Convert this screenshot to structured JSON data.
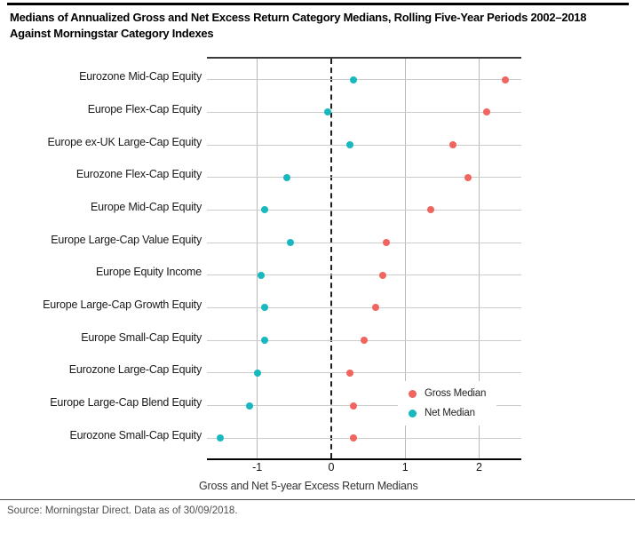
{
  "header": {
    "title_line1": "Medians of Annualized Gross and Net Excess Return Category Medians, Rolling Five-Year Periods 2002–2018",
    "title_line2": "Against Morningstar Category Indexes"
  },
  "legend": {
    "items": [
      {
        "label": "Gross Median",
        "color": "#F0655F"
      },
      {
        "label": "Net Median",
        "color": "#17B8BE"
      }
    ]
  },
  "footer": {
    "source": "Source: Morningstar Direct. Data as of 30/09/2018."
  },
  "chart_data": {
    "type": "scatter",
    "subtype": "horizontal-dot-plot",
    "title": "Medians of Annualized Gross and Net Excess Return Category Medians, Rolling Five-Year Periods 2002–2018 Against Morningstar Category Indexes",
    "categories": [
      "Eurozone Mid-Cap Equity",
      "Europe Flex-Cap Equity",
      "Europe ex-UK Large-Cap Equity",
      "Eurozone Flex-Cap Equity",
      "Europe Mid-Cap Equity",
      "Europe Large-Cap Value Equity",
      "Europe Equity Income",
      "Europe Large-Cap Growth Equity",
      "Europe Small-Cap Equity",
      "Eurozone Large-Cap Equity",
      "Europe Large-Cap Blend Equity",
      "Eurozone Small-Cap Equity"
    ],
    "series": [
      {
        "name": "Gross Median",
        "color": "#F0655F",
        "values": [
          2.35,
          2.1,
          1.65,
          1.85,
          1.35,
          0.75,
          0.7,
          0.6,
          0.45,
          0.25,
          0.3,
          0.3
        ]
      },
      {
        "name": "Net Median",
        "color": "#17B8BE",
        "values": [
          0.3,
          -0.05,
          0.25,
          -0.6,
          -0.9,
          -0.55,
          -0.95,
          -0.9,
          -0.9,
          -1.0,
          -1.1,
          -1.5
        ]
      }
    ],
    "xlabel": "Gross and Net 5-year Excess Return Medians",
    "xticks": [
      -1,
      0,
      1,
      2
    ],
    "xlim": [
      -1.68,
      2.57
    ],
    "zero_line": "dashed-black",
    "grid": "on",
    "legend_position": "inside-lower-right"
  }
}
